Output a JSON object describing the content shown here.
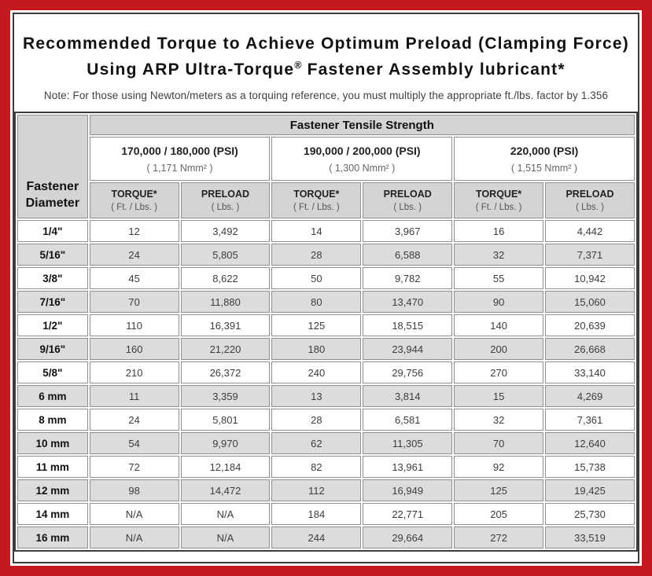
{
  "colors": {
    "frame_red": "#c2191f",
    "border_dark": "#3a3a3a",
    "header_gray": "#d4d4d4",
    "row_alt_gray": "#dcdcdc",
    "cell_border_gray": "#8f8f8f"
  },
  "title": {
    "line1": "Recommended Torque to Achieve Optimum Preload (Clamping Force)",
    "line2_main": "Using ARP Ultra-Torque",
    "line2_reg": "®",
    "line2_rest": " Fastener Assembly lubricant*",
    "note": "Note: For those using Newton/meters as a torquing reference, you must multiply the appropriate ft./lbs. factor by 1.356"
  },
  "table": {
    "corner_label": "Fastener Diameter",
    "tensile_header": "Fastener Tensile Strength",
    "strength_groups": [
      {
        "psi": "170,000 / 180,000 (PSI)",
        "nmm": "( 1,171 Nmm² )"
      },
      {
        "psi": "190,000 / 200,000 (PSI)",
        "nmm": "( 1,300 Nmm² )"
      },
      {
        "psi": "220,000 (PSI)",
        "nmm": "( 1,515 Nmm² )"
      }
    ],
    "column_headers": [
      {
        "label": "TORQUE*",
        "unit": "( Ft. / Lbs. )"
      },
      {
        "label": "PRELOAD",
        "unit": "( Lbs. )"
      },
      {
        "label": "TORQUE*",
        "unit": "( Ft. / Lbs. )"
      },
      {
        "label": "PRELOAD",
        "unit": "( Lbs. )"
      },
      {
        "label": "TORQUE*",
        "unit": "( Ft. / Lbs. )"
      },
      {
        "label": "PRELOAD",
        "unit": "( Lbs. )"
      }
    ],
    "rows": [
      {
        "diameter": "1/4\"",
        "values": [
          "12",
          "3,492",
          "14",
          "3,967",
          "16",
          "4,442"
        ]
      },
      {
        "diameter": "5/16\"",
        "values": [
          "24",
          "5,805",
          "28",
          "6,588",
          "32",
          "7,371"
        ]
      },
      {
        "diameter": "3/8\"",
        "values": [
          "45",
          "8,622",
          "50",
          "9,782",
          "55",
          "10,942"
        ]
      },
      {
        "diameter": "7/16\"",
        "values": [
          "70",
          "11,880",
          "80",
          "13,470",
          "90",
          "15,060"
        ]
      },
      {
        "diameter": "1/2\"",
        "values": [
          "110",
          "16,391",
          "125",
          "18,515",
          "140",
          "20,639"
        ]
      },
      {
        "diameter": "9/16\"",
        "values": [
          "160",
          "21,220",
          "180",
          "23,944",
          "200",
          "26,668"
        ]
      },
      {
        "diameter": "5/8\"",
        "values": [
          "210",
          "26,372",
          "240",
          "29,756",
          "270",
          "33,140"
        ]
      },
      {
        "diameter": "6 mm",
        "values": [
          "11",
          "3,359",
          "13",
          "3,814",
          "15",
          "4,269"
        ]
      },
      {
        "diameter": "8 mm",
        "values": [
          "24",
          "5,801",
          "28",
          "6,581",
          "32",
          "7,361"
        ]
      },
      {
        "diameter": "10 mm",
        "values": [
          "54",
          "9,970",
          "62",
          "11,305",
          "70",
          "12,640"
        ]
      },
      {
        "diameter": "11 mm",
        "values": [
          "72",
          "12,184",
          "82",
          "13,961",
          "92",
          "15,738"
        ]
      },
      {
        "diameter": "12 mm",
        "values": [
          "98",
          "14,472",
          "112",
          "16,949",
          "125",
          "19,425"
        ]
      },
      {
        "diameter": "14 mm",
        "values": [
          "N/A",
          "N/A",
          "184",
          "22,771",
          "205",
          "25,730"
        ]
      },
      {
        "diameter": "16 mm",
        "values": [
          "N/A",
          "N/A",
          "244",
          "29,664",
          "272",
          "33,519"
        ]
      }
    ]
  }
}
